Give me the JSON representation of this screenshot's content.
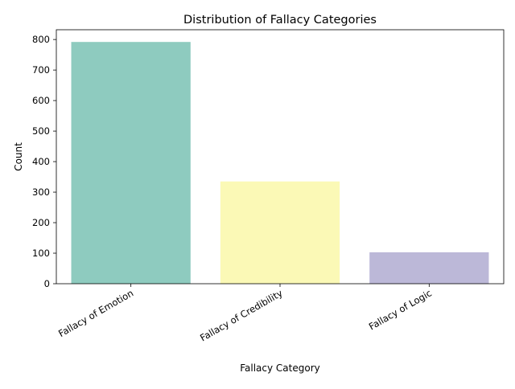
{
  "chart_data": {
    "type": "bar",
    "title": "Distribution of Fallacy Categories",
    "xlabel": "Fallacy Category",
    "ylabel": "Count",
    "categories": [
      "Fallacy of Emotion",
      "Fallacy of Credibility",
      "Fallacy of Logic"
    ],
    "values": [
      792,
      335,
      103
    ],
    "colors": [
      "#8ecbbf",
      "#fbf9b6",
      "#bcb8d8"
    ],
    "ylim": [
      0,
      832
    ],
    "yticks": [
      0,
      100,
      200,
      300,
      400,
      500,
      600,
      700,
      800
    ],
    "grid": false,
    "legend": "none"
  }
}
